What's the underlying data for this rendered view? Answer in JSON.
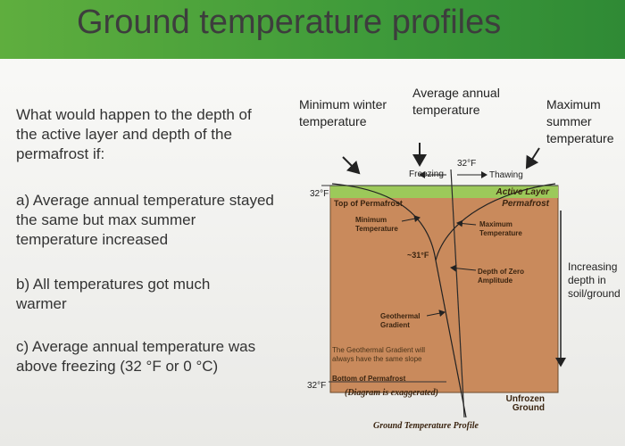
{
  "title": "Ground temperature profiles",
  "questions": {
    "intro": "What would happen to the depth of the active layer and depth of the permafrost if:",
    "items": [
      "a) Average annual temperature stayed the same but max summer temperature increased",
      "b) All temperatures got much warmer",
      "c) Average annual temperature was above freezing (32 °F or 0 °C)"
    ]
  },
  "diagram": {
    "top_labels": [
      "Minimum winter temperature",
      "Average annual temperature",
      "Maximum summer temperature"
    ],
    "freezing_point": "32°F",
    "freezing": "Freezing",
    "thawing": "Thawing",
    "top_depth_label": "32°F",
    "top_of_permafrost": "Top of Permafrost",
    "active_layer": "Active Layer",
    "permafrost": "Permafrost",
    "minimum_temperature": "Minimum Temperature",
    "maximum_temperature": "Maximum Temperature",
    "zero_amplitude_temp": "~31°F",
    "depth_of_zero_amplitude": "Depth of Zero Amplitude",
    "geothermal_gradient": "Geothermal Gradient",
    "gradient_note": "The Geothermal Gradient will always have the same slope",
    "bottom_depth_label": "32°F",
    "bottom_of_permafrost": "Bottom of Permafrost",
    "exaggerated_note": "(Diagram is exaggerated)",
    "unfrozen_ground": "Unfrozen Ground",
    "caption": "Ground Temperature Profile",
    "depth_arrow_label": "Increasing depth in soil/ground"
  }
}
